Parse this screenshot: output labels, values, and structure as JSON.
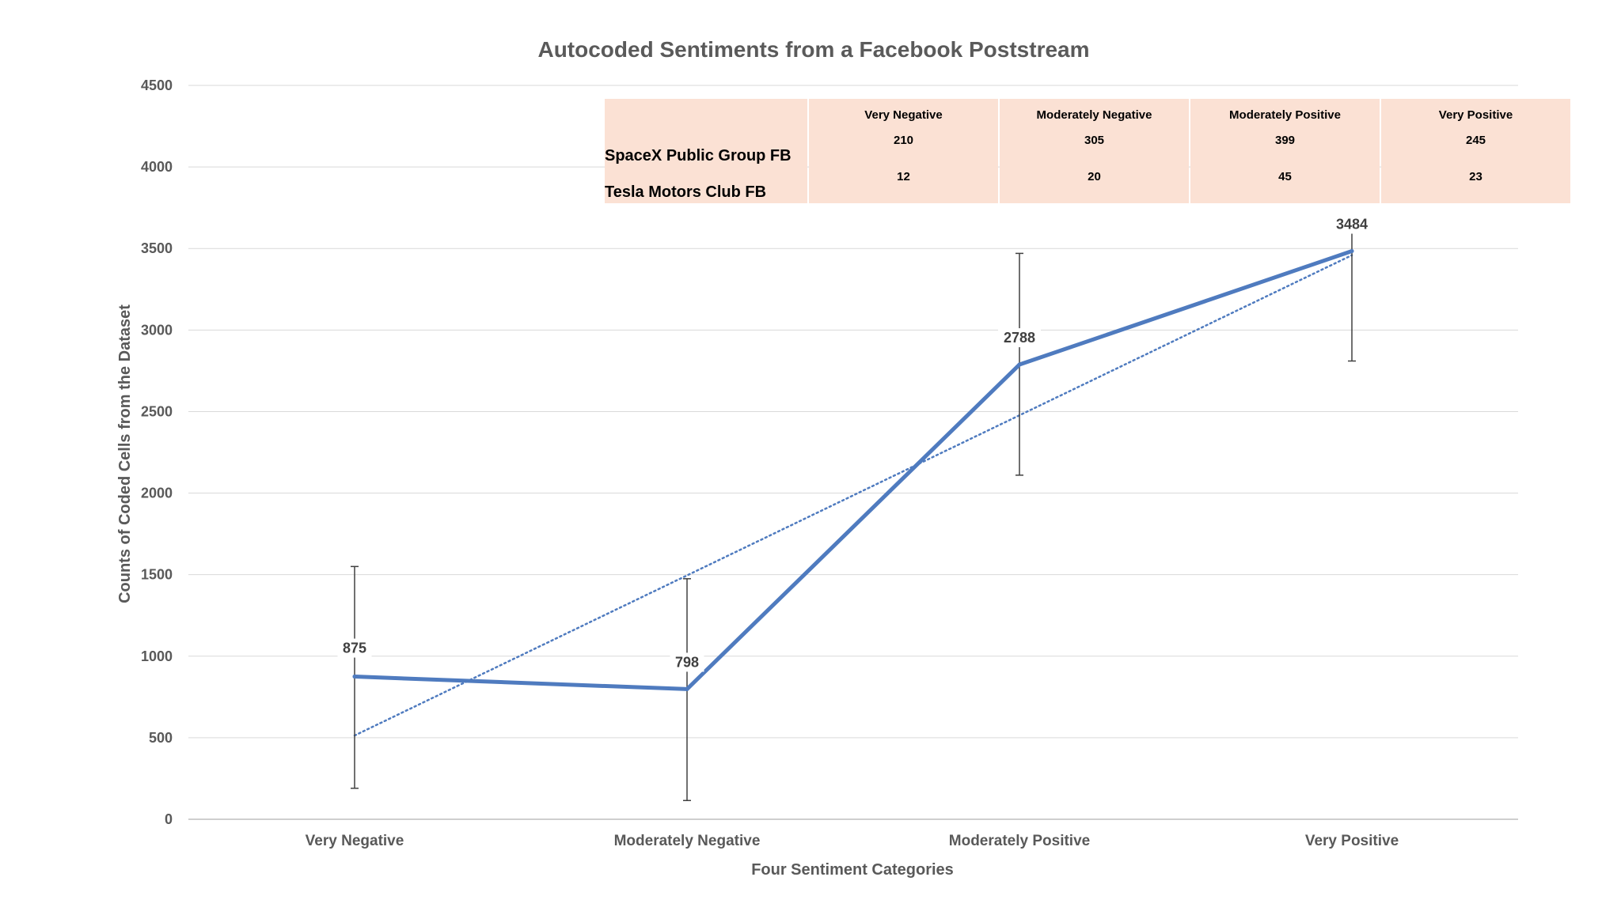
{
  "chart_data": {
    "type": "line",
    "title": "Autocoded Sentiments from a Facebook Poststream",
    "xlabel": "Four Sentiment Categories",
    "ylabel": "Counts of Coded Cells from the Dataset",
    "categories": [
      "Very Negative",
      "Moderately Negative",
      "Moderately Positive",
      "Very Positive"
    ],
    "series": [
      {
        "values": [
          875,
          798,
          2788,
          3484
        ],
        "error_bars": [
          [
            190,
            1550
          ],
          [
            115,
            1475
          ],
          [
            2110,
            3470
          ],
          [
            2810,
            3640
          ]
        ],
        "color": "#4f7bbf"
      }
    ],
    "trendline": {
      "type": "linear",
      "style": "dotted",
      "color": "#4f7bbf"
    },
    "data_labels": [
      "875",
      "798",
      "2788",
      "3484"
    ],
    "ylim": [
      0,
      4500
    ],
    "yticks": [
      0,
      500,
      1000,
      1500,
      2000,
      2500,
      3000,
      3500,
      4000,
      4500
    ],
    "grid": true,
    "data_table": {
      "headers": [
        "Very Negative",
        "Moderately Negative",
        "Moderately Positive",
        "Very Positive"
      ],
      "rows": [
        {
          "label": "SpaceX Public Group FB",
          "values": [
            "210",
            "305",
            "399",
            "245"
          ]
        },
        {
          "label": "Tesla Motors Club FB",
          "values": [
            "12",
            "20",
            "45",
            "23"
          ]
        }
      ]
    }
  }
}
